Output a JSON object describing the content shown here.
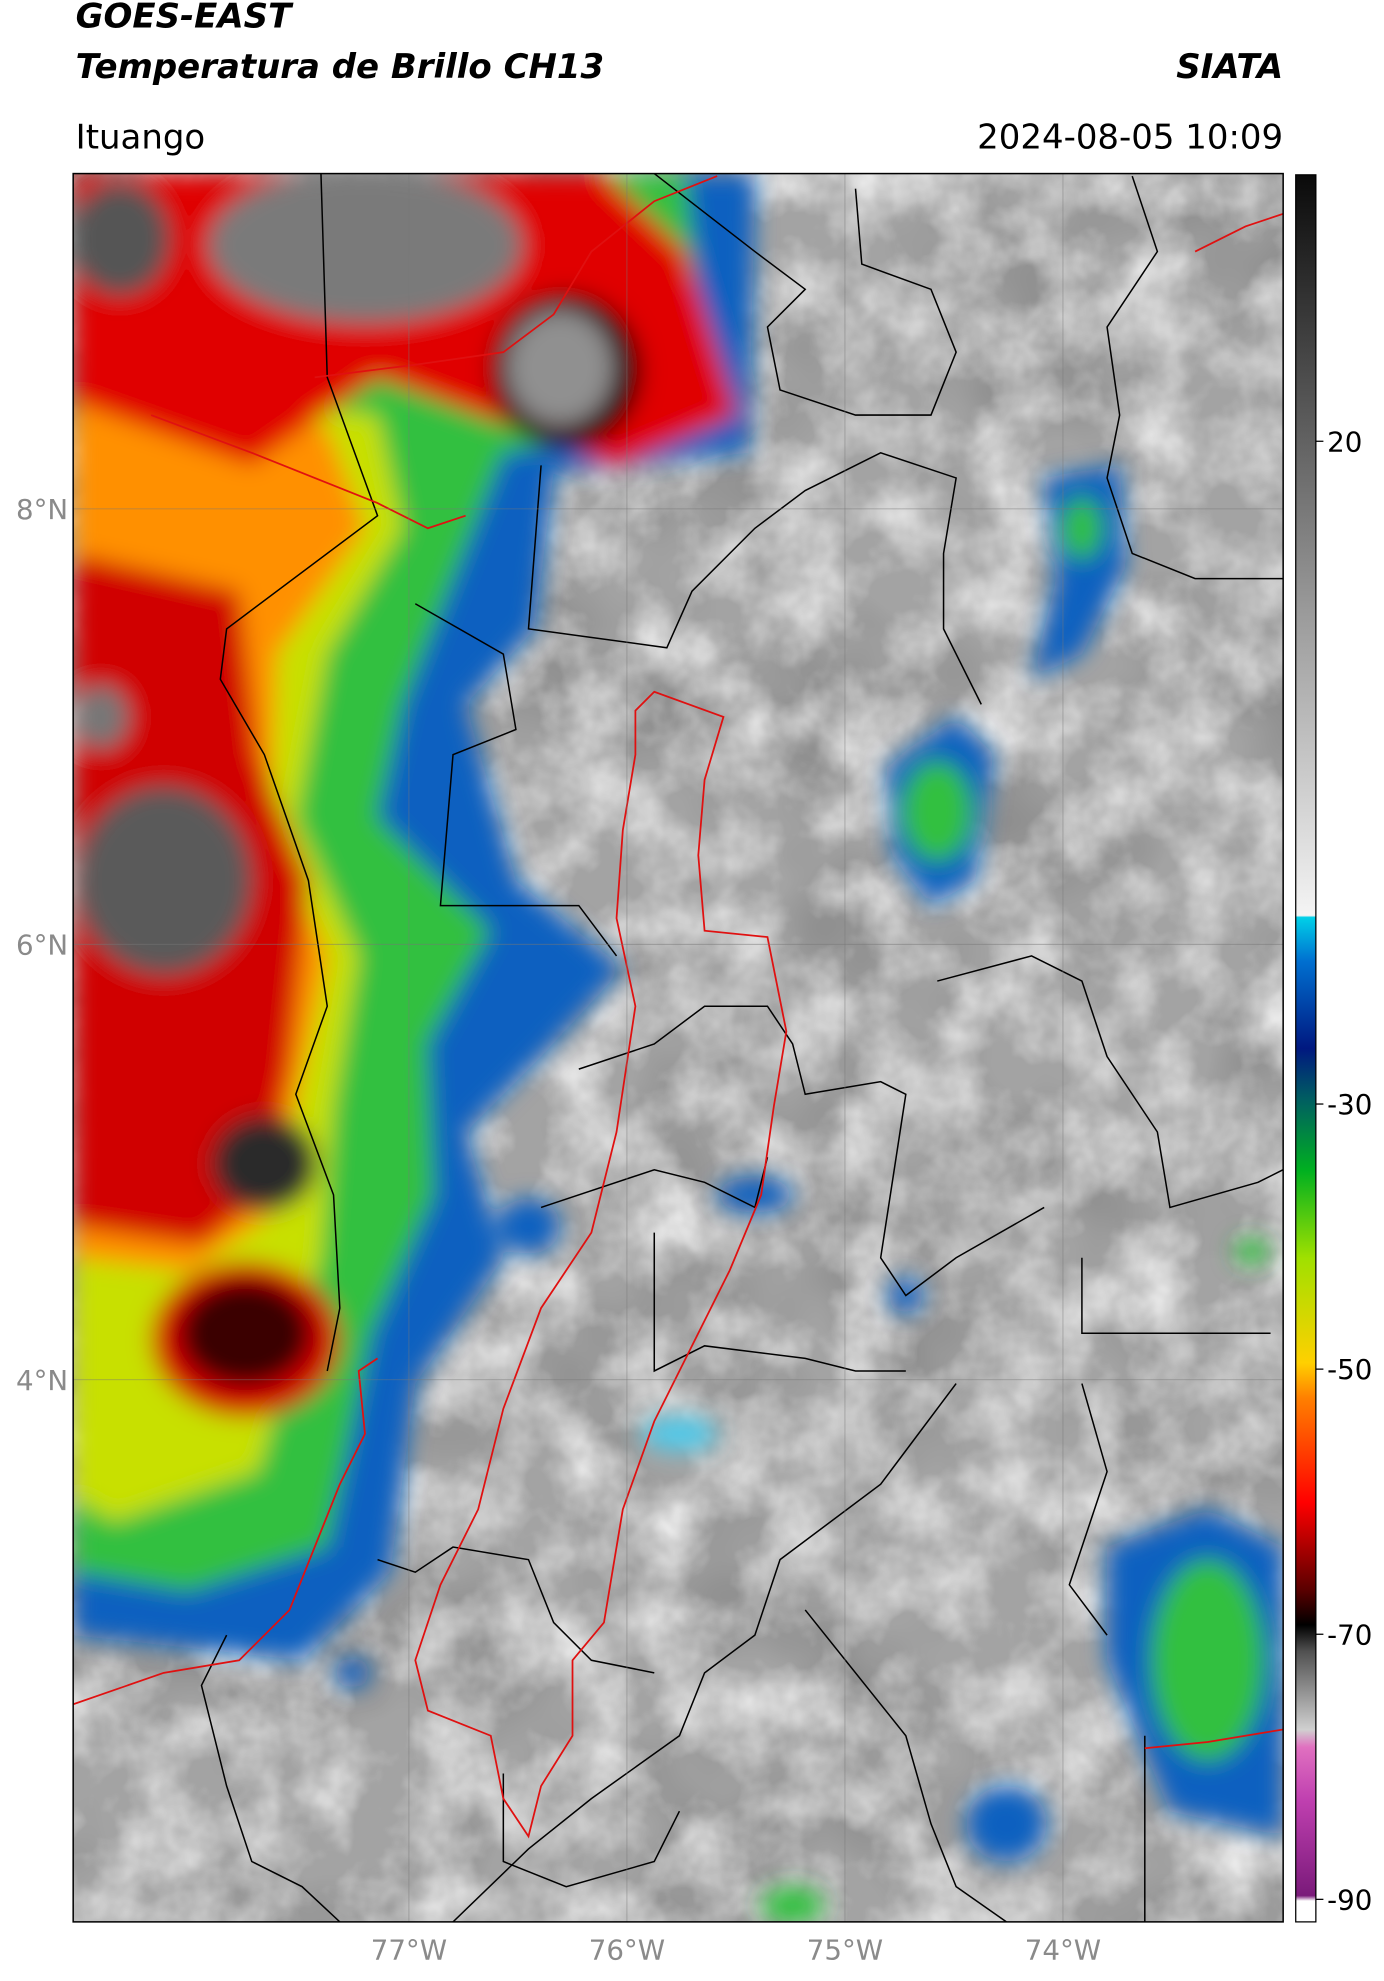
{
  "header": {
    "title": "GOES-EAST",
    "subtitle": "Temperatura de Brillo CH13",
    "source": "SIATA",
    "location": "Ituango",
    "timestamp": "2024-08-05 10:09"
  },
  "map": {
    "xlim": [
      -78.54,
      -72.99
    ],
    "ylim": [
      1.51,
      9.54
    ],
    "grid": true,
    "lat_ticks": [
      {
        "value": 8,
        "label": "8°N"
      },
      {
        "value": 6,
        "label": "6°N"
      },
      {
        "value": 4,
        "label": "4°N"
      }
    ],
    "lon_ticks": [
      {
        "value": -77,
        "label": "77°W"
      },
      {
        "value": -76,
        "label": "76°W"
      },
      {
        "value": -75,
        "label": "75°W"
      },
      {
        "value": -74,
        "label": "74°W"
      }
    ]
  },
  "colorbar": {
    "lim": [
      -91.7,
      40.1
    ],
    "ticks": [
      20,
      -30,
      -50,
      -70,
      -90
    ]
  }
}
